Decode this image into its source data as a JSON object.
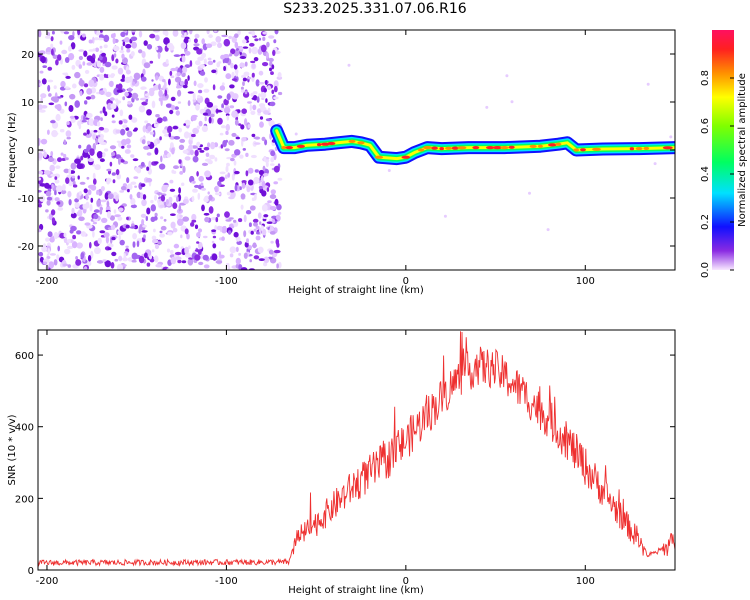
{
  "title": "S233.2025.331.07.06.R16",
  "colors": {
    "noise": "#8a2be2",
    "snr_line": "#ee3030",
    "background": "#ffffff"
  },
  "chart_data": [
    {
      "type": "heatmap",
      "name": "spectrogram",
      "xlabel": "Height of straight line (km)",
      "ylabel": "Frequency (Hz)",
      "xlim": [
        -205,
        150
      ],
      "ylim": [
        -25,
        25
      ],
      "xticks": [
        -200,
        -100,
        0,
        100
      ],
      "xtick_labels": [
        "-200",
        "-100",
        "0",
        "100"
      ],
      "yticks": [
        -20,
        -10,
        0,
        10,
        20
      ],
      "ytick_labels": [
        "-20",
        "-10",
        "0",
        "10",
        "20"
      ],
      "noise_region_x": [
        -205,
        -70
      ],
      "signal_track": {
        "x": [
          -72,
          -68,
          -62,
          -55,
          -45,
          -38,
          -30,
          -25,
          -20,
          -15,
          -5,
          0,
          5,
          12,
          20,
          35,
          55,
          75,
          85,
          90,
          95,
          110,
          130,
          150
        ],
        "y": [
          4,
          0.5,
          0.5,
          1,
          1.2,
          1.5,
          1.8,
          1.5,
          1,
          -1.5,
          -1.8,
          -1.5,
          -0.5,
          0.5,
          0.3,
          0.5,
          0.5,
          0.8,
          1.2,
          1.5,
          0,
          0.2,
          0.3,
          0.5
        ]
      },
      "colorbar": {
        "label": "Normalized spectral amplitude",
        "ticks": [
          0.0,
          0.2,
          0.4,
          0.6,
          0.8
        ],
        "tick_labels": [
          "0.0",
          "0.2",
          "0.4",
          "0.6",
          "0.8"
        ],
        "range": [
          0,
          1
        ]
      }
    },
    {
      "type": "line",
      "name": "snr",
      "xlabel": "Height of straight line (km)",
      "ylabel": "SNR (10 * v/v)",
      "xlim": [
        -205,
        150
      ],
      "ylim": [
        0,
        670
      ],
      "xticks": [
        -200,
        -100,
        0,
        100
      ],
      "xtick_labels": [
        "-200",
        "-100",
        "0",
        "100"
      ],
      "yticks": [
        0,
        200,
        400,
        600
      ],
      "ytick_labels": [
        "0",
        "200",
        "400",
        "600"
      ],
      "envelope_x": [
        -205,
        -65,
        -62,
        -50,
        -40,
        -30,
        -20,
        -10,
        0,
        10,
        20,
        30,
        40,
        50,
        60,
        70,
        80,
        90,
        100,
        110,
        120,
        130,
        135,
        140,
        150
      ],
      "envelope_y": [
        20,
        22,
        80,
        130,
        180,
        230,
        270,
        310,
        360,
        420,
        480,
        540,
        570,
        560,
        520,
        470,
        420,
        360,
        290,
        220,
        150,
        80,
        40,
        50,
        80
      ],
      "noise_amplitude": 70
    }
  ]
}
